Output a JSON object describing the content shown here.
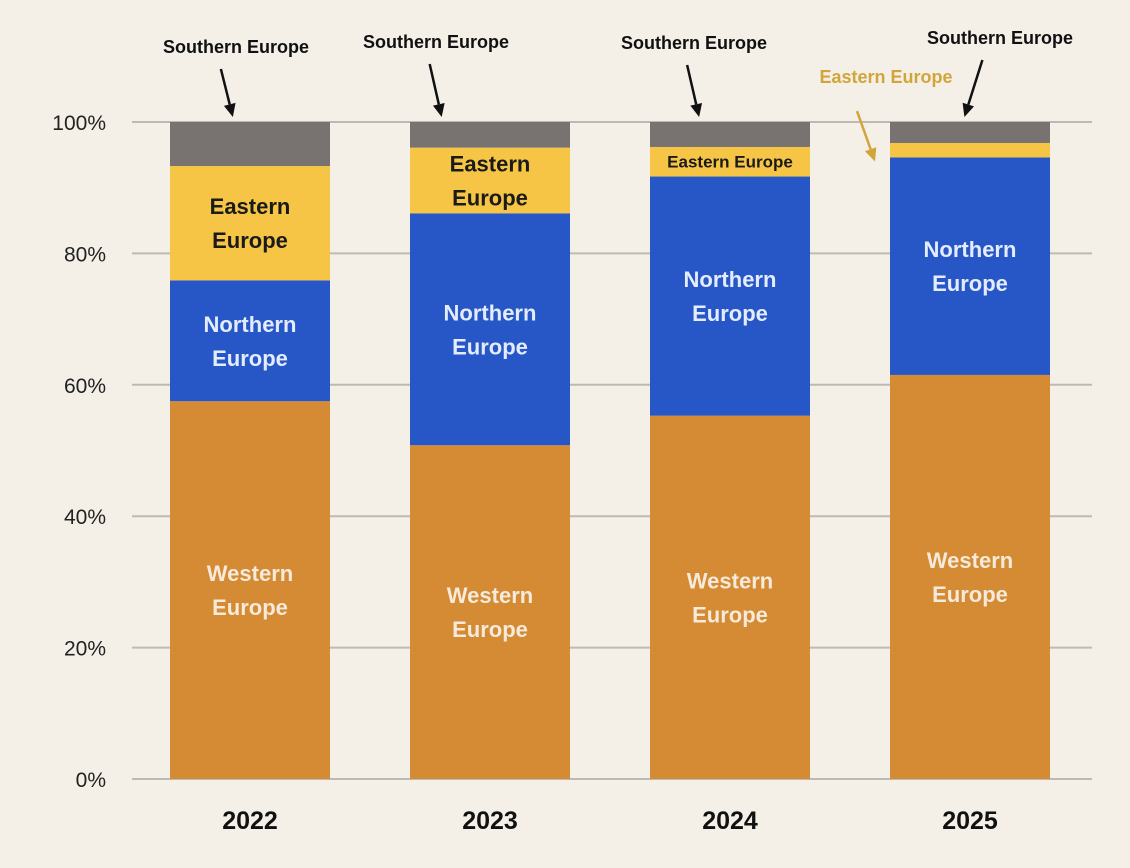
{
  "chart_data": {
    "type": "bar",
    "stacked": true,
    "percent_axis": true,
    "categories": [
      "2022",
      "2023",
      "2024",
      "2025"
    ],
    "series": [
      {
        "name": "Western Europe",
        "label_lines": [
          "Western",
          "Europe"
        ],
        "color": "#d58b33",
        "label_color": "#f5eadb",
        "values": [
          57.5,
          50.8,
          55.3,
          61.5
        ]
      },
      {
        "name": "Northern Europe",
        "label_lines": [
          "Northern",
          "Europe"
        ],
        "color": "#2757c6",
        "label_color": "#e4ecff",
        "values": [
          18.4,
          35.3,
          36.4,
          33.1
        ]
      },
      {
        "name": "Eastern Europe",
        "label_lines": [
          "Eastern",
          "Europe"
        ],
        "color": "#f6c545",
        "label_color": "#1a1a1a",
        "values": [
          17.4,
          10.0,
          4.5,
          2.2
        ]
      },
      {
        "name": "Southern Europe",
        "label_lines": [
          "Southern Europe"
        ],
        "color": "#787370",
        "label_color": "#111111",
        "values": [
          6.7,
          3.9,
          3.8,
          3.2
        ]
      }
    ],
    "y_ticks": [
      0,
      20,
      40,
      60,
      80,
      100
    ],
    "y_tick_labels": [
      "0%",
      "20%",
      "40%",
      "60%",
      "80%",
      "100%"
    ],
    "ylim": [
      0,
      100
    ],
    "grid": true,
    "title": "",
    "xlabel": "",
    "ylabel": "",
    "segment_labels": [
      {
        "category": "2022",
        "series": "Western Europe",
        "lines": [
          "Western",
          "Europe"
        ]
      },
      {
        "category": "2022",
        "series": "Northern Europe",
        "lines": [
          "Northern",
          "Europe"
        ]
      },
      {
        "category": "2022",
        "series": "Eastern Europe",
        "lines": [
          "Eastern",
          "Europe"
        ]
      },
      {
        "category": "2023",
        "series": "Western Europe",
        "lines": [
          "Western",
          "Europe"
        ]
      },
      {
        "category": "2023",
        "series": "Northern Europe",
        "lines": [
          "Northern",
          "Europe"
        ]
      },
      {
        "category": "2023",
        "series": "Eastern Europe",
        "lines": [
          "Eastern",
          "Europe"
        ]
      },
      {
        "category": "2024",
        "series": "Western Europe",
        "lines": [
          "Western",
          "Europe"
        ]
      },
      {
        "category": "2024",
        "series": "Northern Europe",
        "lines": [
          "Northern",
          "Europe"
        ]
      },
      {
        "category": "2024",
        "series": "Eastern Europe",
        "lines": [
          "Eastern Europe"
        ],
        "small": true
      },
      {
        "category": "2025",
        "series": "Western Europe",
        "lines": [
          "Western",
          "Europe"
        ]
      },
      {
        "category": "2025",
        "series": "Northern Europe",
        "lines": [
          "Northern",
          "Europe"
        ]
      }
    ],
    "annotations": [
      {
        "text": "Southern Europe",
        "category": "2022",
        "series": "Southern Europe",
        "color": "#111111"
      },
      {
        "text": "Southern Europe",
        "category": "2023",
        "series": "Southern Europe",
        "color": "#111111"
      },
      {
        "text": "Southern Europe",
        "category": "2024",
        "series": "Southern Europe",
        "color": "#111111"
      },
      {
        "text": "Southern Europe",
        "category": "2025",
        "series": "Southern Europe",
        "color": "#111111"
      },
      {
        "text": "Eastern Europe",
        "category": "2025",
        "series": "Eastern Europe",
        "color": "#d2a53a"
      }
    ]
  },
  "colors": {
    "background": "#f4f0e8",
    "grid": "#bdbab4",
    "axis_text": "#222222"
  }
}
